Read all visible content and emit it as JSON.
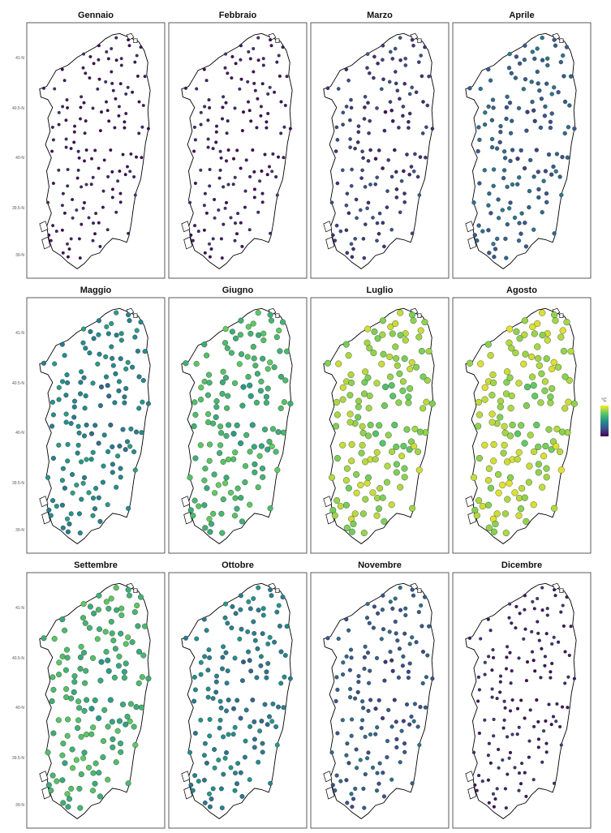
{
  "figure": {
    "months": [
      "Gennaio",
      "Febbraio",
      "Marzo",
      "Aprile",
      "Maggio",
      "Giugno",
      "Luglio",
      "Agosto",
      "Settembre",
      "Ottobre",
      "Novembre",
      "Dicembre"
    ],
    "month_levels": [
      0.08,
      0.1,
      0.2,
      0.33,
      0.48,
      0.68,
      0.85,
      0.88,
      0.67,
      0.45,
      0.3,
      0.12
    ],
    "latitude_ticks": [
      "41-N",
      "40.5-N",
      "40-N",
      "39.5-N",
      "39-N"
    ],
    "legend": {
      "unit": "°C"
    },
    "colormap": "viridis",
    "colors": {
      "low": "#440154",
      "mid": "#21918c",
      "high": "#fde725",
      "coast": "#000000",
      "panel_border": "#333333"
    }
  }
}
